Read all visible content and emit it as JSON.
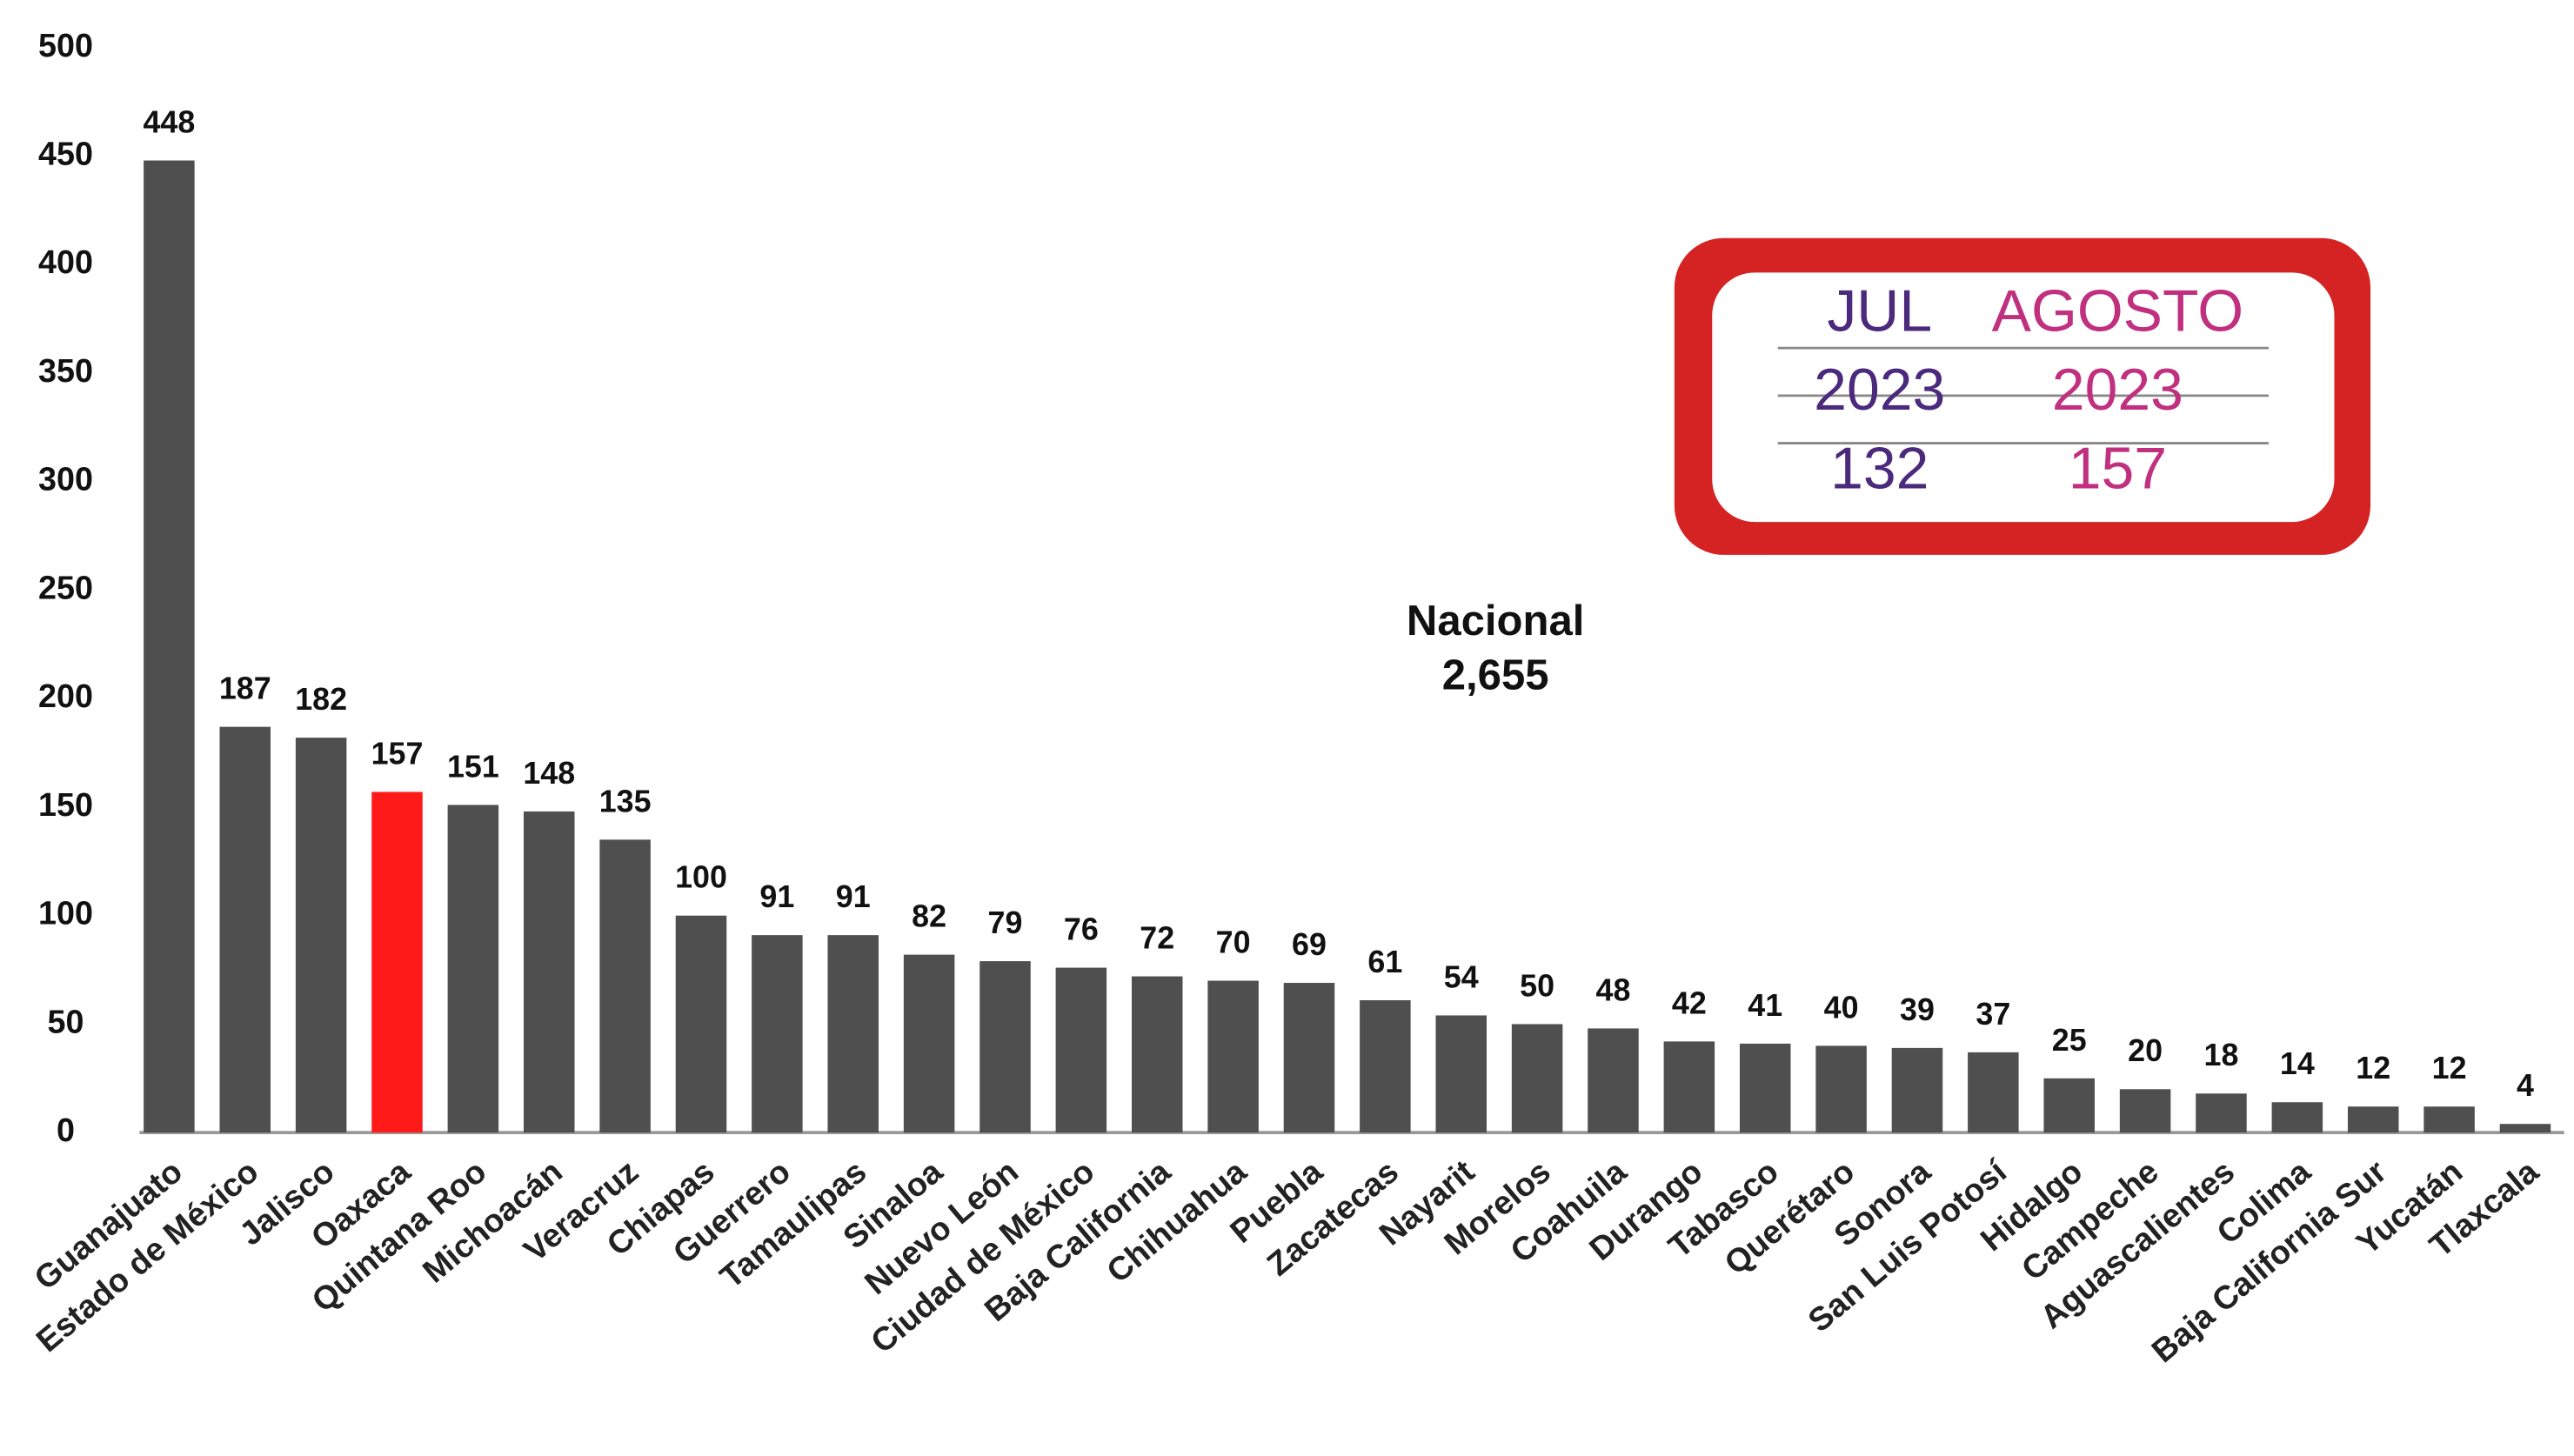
{
  "chart_data": {
    "type": "bar",
    "categories": [
      "Guanajuato",
      "Estado de México",
      "Jalisco",
      "Oaxaca",
      "Quintana Roo",
      "Michoacán",
      "Veracruz",
      "Chiapas",
      "Guerrero",
      "Tamaulipas",
      "Sinaloa",
      "Nuevo León",
      "Ciudad de México",
      "Baja California",
      "Chihuahua",
      "Puebla",
      "Zacatecas",
      "Nayarit",
      "Morelos",
      "Coahuila",
      "Durango",
      "Tabasco",
      "Querétaro",
      "Sonora",
      "San Luis Potosí",
      "Hidalgo",
      "Campeche",
      "Aguascalientes",
      "Colima",
      "Baja California Sur",
      "Yucatán",
      "Tlaxcala"
    ],
    "values": [
      448,
      187,
      182,
      157,
      151,
      148,
      135,
      100,
      91,
      91,
      82,
      79,
      76,
      72,
      70,
      69,
      61,
      54,
      50,
      48,
      42,
      41,
      40,
      39,
      37,
      25,
      20,
      18,
      14,
      12,
      12,
      4
    ],
    "colors": [
      "#4f4f4f",
      "#4f4f4f",
      "#4f4f4f",
      "#ff1a1a",
      "#4f4f4f",
      "#4f4f4f",
      "#4f4f4f",
      "#4f4f4f",
      "#4f4f4f",
      "#4f4f4f",
      "#4f4f4f",
      "#4f4f4f",
      "#4f4f4f",
      "#4f4f4f",
      "#4f4f4f",
      "#4f4f4f",
      "#4f4f4f",
      "#4f4f4f",
      "#4f4f4f",
      "#4f4f4f",
      "#4f4f4f",
      "#4f4f4f",
      "#4f4f4f",
      "#4f4f4f",
      "#4f4f4f",
      "#4f4f4f",
      "#4f4f4f",
      "#4f4f4f",
      "#4f4f4f",
      "#4f4f4f",
      "#4f4f4f",
      "#4f4f4f"
    ],
    "ylim": [
      0,
      500
    ],
    "yticks": [
      0,
      50,
      100,
      150,
      200,
      250,
      300,
      350,
      400,
      450,
      500
    ],
    "grid": false,
    "annotation": {
      "label": "Nacional",
      "value": "2,655"
    },
    "inset": {
      "columns": [
        {
          "month": "JUL",
          "year": "2023",
          "value": 132,
          "color": "#4b2a7d"
        },
        {
          "month": "AGOSTO",
          "year": "2023",
          "value": 157,
          "color": "#c0307f"
        }
      ]
    }
  }
}
